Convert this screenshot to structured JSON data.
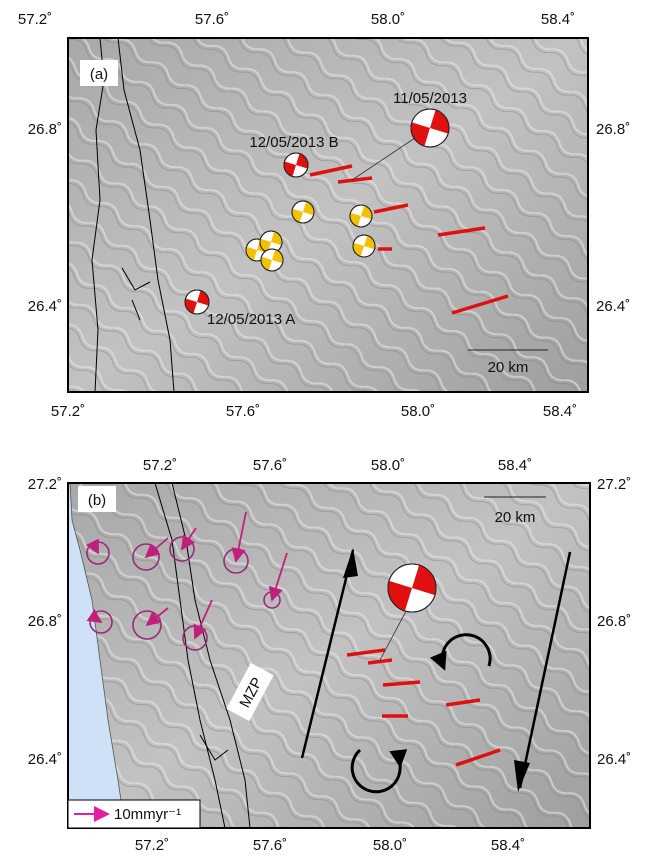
{
  "panel_a": {
    "label": "(a)",
    "x_ticks": [
      "57.2˚",
      "57.6˚",
      "58.0˚",
      "58.4˚"
    ],
    "y_ticks": [
      "26.8˚",
      "26.4˚"
    ],
    "events": [
      "11/05/2013",
      "12/05/2013 B",
      "12/05/2013 A"
    ],
    "scale": "20 km"
  },
  "panel_b": {
    "label": "(b)",
    "x_ticks": [
      "57.2˚",
      "57.6˚",
      "58.0˚",
      "58.4˚"
    ],
    "y_ticks": [
      "27.2˚",
      "26.8˚",
      "26.4˚"
    ],
    "scale": "20 km",
    "zone": "MZP",
    "legend": "10mmyr⁻¹"
  }
}
